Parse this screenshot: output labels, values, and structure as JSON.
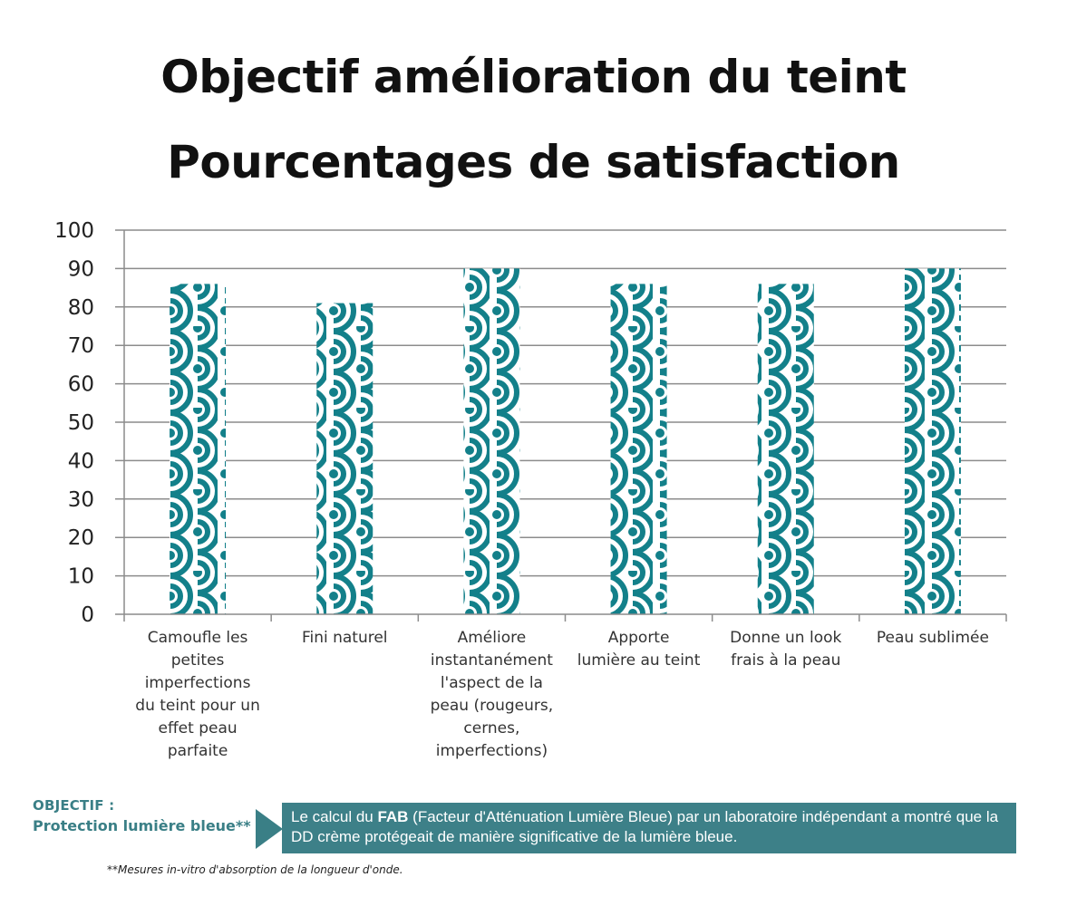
{
  "chart_data": {
    "type": "bar",
    "title": "Objectif amélioration du teint",
    "subtitle": "Pourcentages de satisfaction",
    "categories": [
      [
        "Camoufle les",
        "petites",
        "imperfections",
        "du teint pour un",
        "effet peau",
        "parfaite"
      ],
      [
        "Fini naturel"
      ],
      [
        "Améliore",
        "instantanément",
        "l'aspect de la",
        "peau (rougeurs,",
        "cernes,",
        "imperfections)"
      ],
      [
        "Apporte",
        "lumière au teint"
      ],
      [
        "Donne un look",
        "frais à la peau"
      ],
      [
        "Peau sublimée"
      ]
    ],
    "values": [
      86,
      81,
      90,
      86,
      86,
      90
    ],
    "ylim": [
      0,
      100
    ],
    "yticks": [
      0,
      10,
      20,
      30,
      40,
      50,
      60,
      70,
      80,
      90,
      100
    ],
    "grid": true,
    "bar_color": "#13808a",
    "bar_pattern": "wave"
  },
  "objective": {
    "title": "OBJECTIF :",
    "subtitle": "Protection lumière bleue**"
  },
  "info": {
    "text_before": "Le calcul du ",
    "bold": "FAB",
    "text_after": " (Facteur d'Atténuation Lumière Bleue) par un laboratoire indépendant a montré que la DD crème protégeait de manière significative de la lumière bleue."
  },
  "footnote": "**Mesures in-vitro d'absorption de la longueur d'onde."
}
